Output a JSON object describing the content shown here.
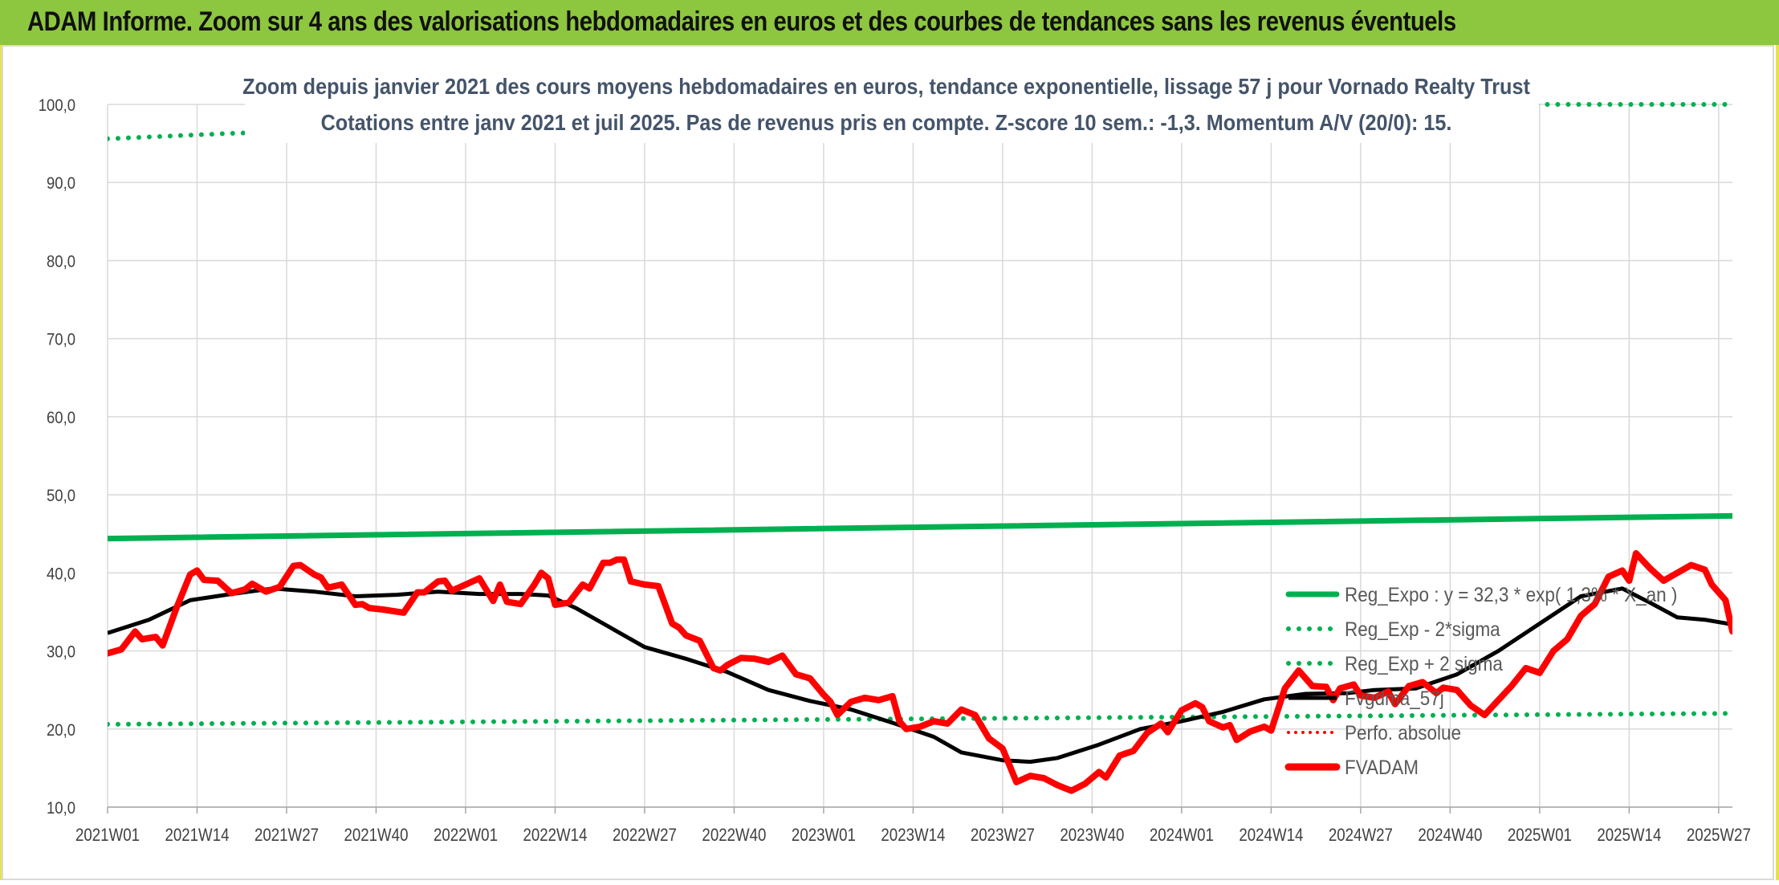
{
  "header": {
    "title": "ADAM Informe. Zoom sur 4 ans des valorisations hebdomadaires en euros et des courbes de tendances sans les revenus éventuels"
  },
  "chart_data": {
    "type": "line",
    "title": "Zoom depuis janvier 2021 des cours moyens hebdomadaires en euros, tendance exponentielle, lissage 57 j pour Vornado Realty Trust",
    "subtitle": "Cotations entre janv 2021 et juil 2025. Pas de revenus pris en compte. Z-score 10 sem.: -1,3. Momentum A/V (20/0): 15.",
    "xlabel": "",
    "ylabel": "",
    "ylim": [
      10,
      100
    ],
    "yticks": [
      "10,0",
      "20,0",
      "30,0",
      "40,0",
      "50,0",
      "60,0",
      "70,0",
      "80,0",
      "90,0",
      "100,0"
    ],
    "xtick_labels": [
      "2021W01",
      "2021W14",
      "2021W27",
      "2021W40",
      "2022W01",
      "2022W14",
      "2022W27",
      "2022W40",
      "2023W01",
      "2023W14",
      "2023W27",
      "2023W40",
      "2024W01",
      "2024W14",
      "2024W27",
      "2024W40",
      "2025W01",
      "2025W14",
      "2025W27"
    ],
    "x_range_weeks": [
      0,
      236
    ],
    "grid": true,
    "legend_position": "right",
    "colors": {
      "green": "#00b050",
      "black": "#000000",
      "red": "#ff0000"
    },
    "series": [
      {
        "name": "Reg_Expo : y = 32,3 * exp( 1,3% * X_an )",
        "style": "solid-green",
        "points": [
          [
            0,
            44.4
          ],
          [
            236,
            47.3
          ]
        ]
      },
      {
        "name": "Reg_Exp - 2*sigma",
        "style": "dotted-green",
        "points": [
          [
            0,
            20.6
          ],
          [
            236,
            22.0
          ]
        ]
      },
      {
        "name": "Reg_Exp + 2 sigma",
        "style": "dotted-green",
        "points": [
          [
            0,
            95.6
          ],
          [
            18,
            96.3
          ],
          [
            200,
            100.0
          ],
          [
            236,
            100.0
          ]
        ]
      },
      {
        "name": "Fvgdma_57j",
        "style": "solid-black",
        "points": [
          [
            0,
            32.3
          ],
          [
            6,
            34.0
          ],
          [
            12,
            36.5
          ],
          [
            18,
            37.3
          ],
          [
            24,
            38.0
          ],
          [
            30,
            37.6
          ],
          [
            36,
            37.0
          ],
          [
            42,
            37.2
          ],
          [
            48,
            37.6
          ],
          [
            54,
            37.3
          ],
          [
            60,
            37.3
          ],
          [
            64,
            37.1
          ],
          [
            68,
            35.5
          ],
          [
            72,
            33.5
          ],
          [
            78,
            30.5
          ],
          [
            84,
            29.0
          ],
          [
            90,
            27.3
          ],
          [
            96,
            25.0
          ],
          [
            102,
            23.6
          ],
          [
            108,
            22.5
          ],
          [
            114,
            20.8
          ],
          [
            120,
            19.0
          ],
          [
            124,
            17.0
          ],
          [
            130,
            16.0
          ],
          [
            134,
            15.8
          ],
          [
            138,
            16.3
          ],
          [
            144,
            18.0
          ],
          [
            150,
            20.0
          ],
          [
            156,
            21.0
          ],
          [
            162,
            22.2
          ],
          [
            168,
            23.8
          ],
          [
            174,
            24.5
          ],
          [
            180,
            24.6
          ],
          [
            184,
            25.0
          ],
          [
            190,
            25.2
          ],
          [
            196,
            27.0
          ],
          [
            202,
            30.0
          ],
          [
            208,
            33.5
          ],
          [
            214,
            37.0
          ],
          [
            220,
            38.0
          ],
          [
            224,
            36.2
          ],
          [
            228,
            34.3
          ],
          [
            232,
            34.0
          ],
          [
            236,
            33.4
          ]
        ]
      },
      {
        "name": "Perfo. absolue",
        "style": "dotted-red",
        "points": []
      },
      {
        "name": "FVADAM",
        "style": "thick-red",
        "points": [
          [
            0,
            29.7
          ],
          [
            2,
            30.2
          ],
          [
            4,
            32.5
          ],
          [
            5,
            31.5
          ],
          [
            7,
            31.8
          ],
          [
            8,
            30.7
          ],
          [
            10,
            35.5
          ],
          [
            12,
            39.8
          ],
          [
            13,
            40.3
          ],
          [
            14,
            39.1
          ],
          [
            16,
            39.0
          ],
          [
            18,
            37.4
          ],
          [
            20,
            37.9
          ],
          [
            21,
            38.6
          ],
          [
            23,
            37.6
          ],
          [
            25,
            38.2
          ],
          [
            27,
            40.9
          ],
          [
            28,
            41.0
          ],
          [
            30,
            39.8
          ],
          [
            31,
            39.4
          ],
          [
            32,
            38.1
          ],
          [
            34,
            38.5
          ],
          [
            36,
            35.9
          ],
          [
            37,
            36.0
          ],
          [
            38,
            35.5
          ],
          [
            40,
            35.3
          ],
          [
            43,
            34.9
          ],
          [
            45,
            37.5
          ],
          [
            46,
            37.5
          ],
          [
            48,
            38.9
          ],
          [
            49,
            39.0
          ],
          [
            50,
            37.7
          ],
          [
            52,
            38.5
          ],
          [
            54,
            39.3
          ],
          [
            56,
            36.4
          ],
          [
            57,
            38.5
          ],
          [
            58,
            36.3
          ],
          [
            60,
            36.0
          ],
          [
            62,
            38.5
          ],
          [
            63,
            40.0
          ],
          [
            64,
            39.3
          ],
          [
            65,
            35.9
          ],
          [
            67,
            36.2
          ],
          [
            69,
            38.5
          ],
          [
            70,
            38.0
          ],
          [
            72,
            41.3
          ],
          [
            73,
            41.3
          ],
          [
            74,
            41.7
          ],
          [
            75,
            41.7
          ],
          [
            76,
            38.9
          ],
          [
            78,
            38.5
          ],
          [
            80,
            38.3
          ],
          [
            82,
            33.5
          ],
          [
            83,
            33.0
          ],
          [
            84,
            32.0
          ],
          [
            86,
            31.3
          ],
          [
            88,
            27.8
          ],
          [
            89,
            27.5
          ],
          [
            90,
            28.2
          ],
          [
            92,
            29.1
          ],
          [
            94,
            29.0
          ],
          [
            96,
            28.6
          ],
          [
            98,
            29.4
          ],
          [
            100,
            27.0
          ],
          [
            102,
            26.5
          ],
          [
            104,
            24.4
          ],
          [
            105,
            23.5
          ],
          [
            106,
            21.8
          ],
          [
            108,
            23.5
          ],
          [
            110,
            24.0
          ],
          [
            112,
            23.7
          ],
          [
            114,
            24.2
          ],
          [
            115,
            21.0
          ],
          [
            116,
            20.0
          ],
          [
            118,
            20.3
          ],
          [
            120,
            21.0
          ],
          [
            122,
            20.7
          ],
          [
            124,
            22.5
          ],
          [
            126,
            21.8
          ],
          [
            128,
            18.8
          ],
          [
            130,
            17.5
          ],
          [
            132,
            13.2
          ],
          [
            134,
            14.0
          ],
          [
            136,
            13.7
          ],
          [
            138,
            12.8
          ],
          [
            140,
            12.1
          ],
          [
            142,
            13.0
          ],
          [
            144,
            14.5
          ],
          [
            145,
            13.8
          ],
          [
            147,
            16.6
          ],
          [
            149,
            17.2
          ],
          [
            151,
            19.5
          ],
          [
            153,
            20.7
          ],
          [
            154,
            19.6
          ],
          [
            156,
            22.4
          ],
          [
            158,
            23.3
          ],
          [
            159,
            22.8
          ],
          [
            160,
            21.0
          ],
          [
            162,
            20.2
          ],
          [
            163,
            20.5
          ],
          [
            164,
            18.6
          ],
          [
            166,
            19.7
          ],
          [
            168,
            20.3
          ],
          [
            169,
            19.8
          ],
          [
            171,
            25.2
          ],
          [
            173,
            27.5
          ],
          [
            175,
            25.5
          ],
          [
            177,
            25.4
          ],
          [
            178,
            23.7
          ],
          [
            179,
            25.2
          ],
          [
            181,
            25.7
          ],
          [
            182,
            24.3
          ],
          [
            184,
            24.0
          ],
          [
            186,
            24.8
          ],
          [
            187,
            23.2
          ],
          [
            189,
            25.5
          ],
          [
            191,
            26.0
          ],
          [
            193,
            24.6
          ],
          [
            194,
            25.3
          ],
          [
            196,
            25.0
          ],
          [
            198,
            23.0
          ],
          [
            200,
            21.8
          ],
          [
            202,
            23.7
          ],
          [
            204,
            25.6
          ],
          [
            206,
            27.8
          ],
          [
            208,
            27.2
          ],
          [
            210,
            30.0
          ],
          [
            212,
            31.5
          ],
          [
            214,
            34.5
          ],
          [
            216,
            36.0
          ],
          [
            218,
            39.5
          ],
          [
            220,
            40.3
          ],
          [
            221,
            39.0
          ],
          [
            222,
            42.5
          ],
          [
            224,
            40.6
          ],
          [
            226,
            39.0
          ],
          [
            228,
            40.0
          ],
          [
            230,
            41.0
          ],
          [
            232,
            40.4
          ],
          [
            233,
            38.5
          ],
          [
            235,
            36.5
          ],
          [
            236,
            32.5
          ]
        ]
      }
    ]
  }
}
